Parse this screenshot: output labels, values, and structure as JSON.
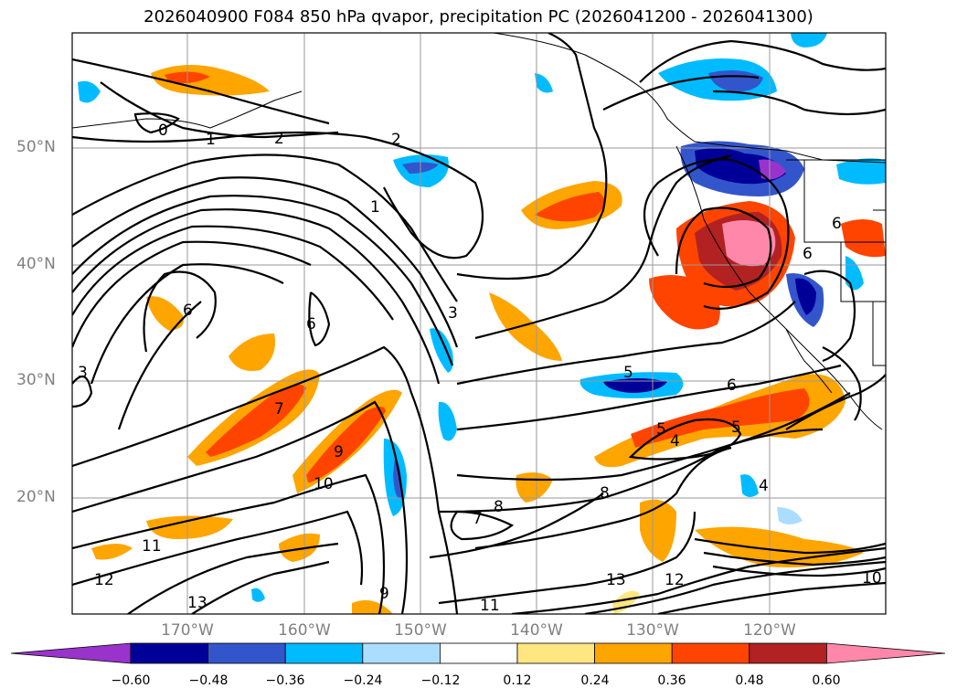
{
  "title": "2026040900 F084 850 hPa qvapor, precipitation PC (2026041200 - 2026041300)",
  "map": {
    "projection": "lat-lon",
    "lat_labels": [
      "50°N",
      "40°N",
      "30°N",
      "20°N"
    ],
    "lon_labels": [
      "170°W",
      "160°W",
      "150°W",
      "140°W",
      "130°W",
      "120°W"
    ],
    "contour_labels": [
      "0",
      "1",
      "2",
      "2",
      "1",
      "3",
      "6",
      "6",
      "3",
      "7",
      "9",
      "10",
      "8",
      "7",
      "8",
      "11",
      "12",
      "13",
      "13",
      "12",
      "11",
      "9",
      "5",
      "6",
      "5",
      "4",
      "5",
      "6",
      "6",
      "4",
      "10"
    ]
  },
  "colorbar": {
    "ticks": [
      "−0.60",
      "−0.48",
      "−0.36",
      "−0.24",
      "−0.12",
      "0.12",
      "0.24",
      "0.36",
      "0.48",
      "0.60"
    ],
    "colors": [
      "#9933cc",
      "#000099",
      "#3355cc",
      "#00bbff",
      "#aaddff",
      "#ffffff",
      "#ffe680",
      "#ffa500",
      "#ff4400",
      "#b22222",
      "#ff88aa"
    ]
  }
}
